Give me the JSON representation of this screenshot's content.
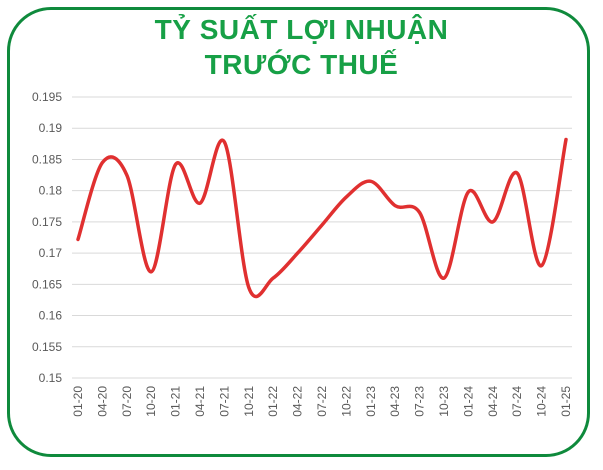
{
  "title_lines": [
    "TỶ SUẤT LỢI NHUẬN",
    "TRƯỚC THUẾ"
  ],
  "colors": {
    "frame": "#0f8a3c",
    "title": "#17a046",
    "line": "#e03030",
    "grid": "#d9d9d9",
    "tick": "#595959"
  },
  "chart_data": {
    "type": "line",
    "title": "TỶ SUẤT LỢI NHUẬN TRƯỚC THUẾ",
    "xlabel": "",
    "ylabel": "",
    "x_tick_labels": [
      "01-20",
      "04-20",
      "07-20",
      "10-20",
      "01-21",
      "04-21",
      "07-21",
      "10-21",
      "01-22",
      "04-22",
      "07-22",
      "10-22",
      "01-23",
      "04-23",
      "07-23",
      "10-23",
      "01-24",
      "04-24",
      "07-24",
      "10-24",
      "01-25"
    ],
    "y_tick_labels": [
      "0.195",
      "0.19",
      "0.185",
      "0.18",
      "0.175",
      "0.17",
      "0.165",
      "0.16",
      "0.155",
      "0.15"
    ],
    "ylim": [
      0.15,
      0.195
    ],
    "y_step": 0.005,
    "grid": true,
    "legend": "none",
    "series": [
      {
        "values": [
          0.1722,
          0.1845,
          0.1825,
          0.167,
          0.1842,
          0.178,
          0.1878,
          0.1645,
          0.166,
          0.17,
          0.1745,
          0.179,
          0.1815,
          0.1776,
          0.1765,
          0.166,
          0.1798,
          0.175,
          0.1828,
          0.168,
          0.1882
        ]
      }
    ]
  }
}
